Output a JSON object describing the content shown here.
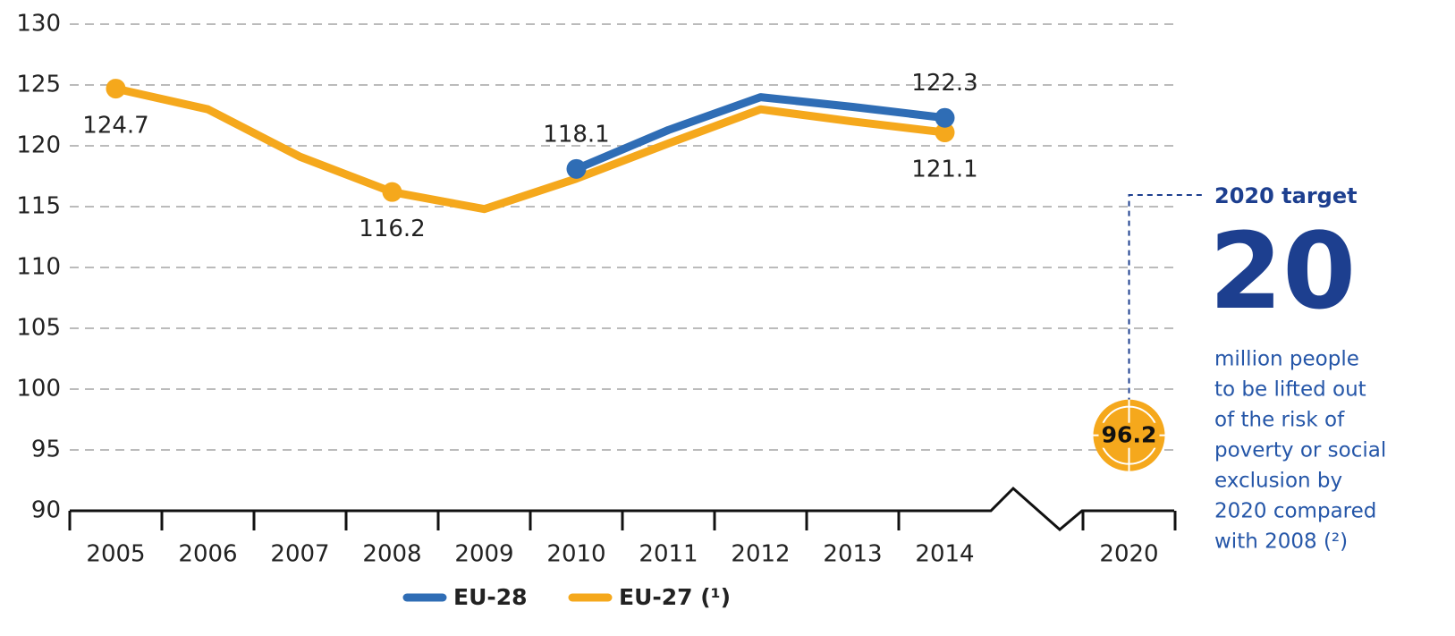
{
  "chart_data": {
    "type": "line",
    "categories": [
      "2005",
      "2006",
      "2007",
      "2008",
      "2009",
      "2010",
      "2011",
      "2012",
      "2013",
      "2014",
      null,
      "2020"
    ],
    "series": [
      {
        "name": "EU-28",
        "color": "#2f6db5",
        "values": [
          null,
          null,
          null,
          null,
          null,
          118.1,
          121.3,
          124.0,
          123.2,
          122.3,
          null,
          null
        ],
        "value_labels": [
          null,
          null,
          null,
          null,
          null,
          "118.1",
          null,
          null,
          null,
          "122.3",
          null,
          null
        ]
      },
      {
        "name": "EU-27 (¹)",
        "color": "#f5a81c",
        "values": [
          124.7,
          123.0,
          119.1,
          116.2,
          114.8,
          117.3,
          120.2,
          123.0,
          122.0,
          121.1,
          null,
          null
        ],
        "value_labels": [
          "124.7",
          null,
          null,
          "116.2",
          null,
          null,
          null,
          null,
          null,
          "121.1",
          null,
          null
        ]
      }
    ],
    "target": {
      "category": 11,
      "value": 96.2,
      "color": "#f5a81c"
    },
    "ylim": [
      90,
      130
    ],
    "yticks": [
      90,
      95,
      100,
      105,
      110,
      115,
      120,
      125,
      130
    ],
    "grid": true,
    "annotation": {
      "heading": "2020 target",
      "number": "20",
      "lines": [
        "million people",
        "to be lifted out",
        "of the risk of",
        "poverty or social",
        "exclusion by",
        "2020 compared",
        "with 2008 (²)"
      ]
    }
  }
}
